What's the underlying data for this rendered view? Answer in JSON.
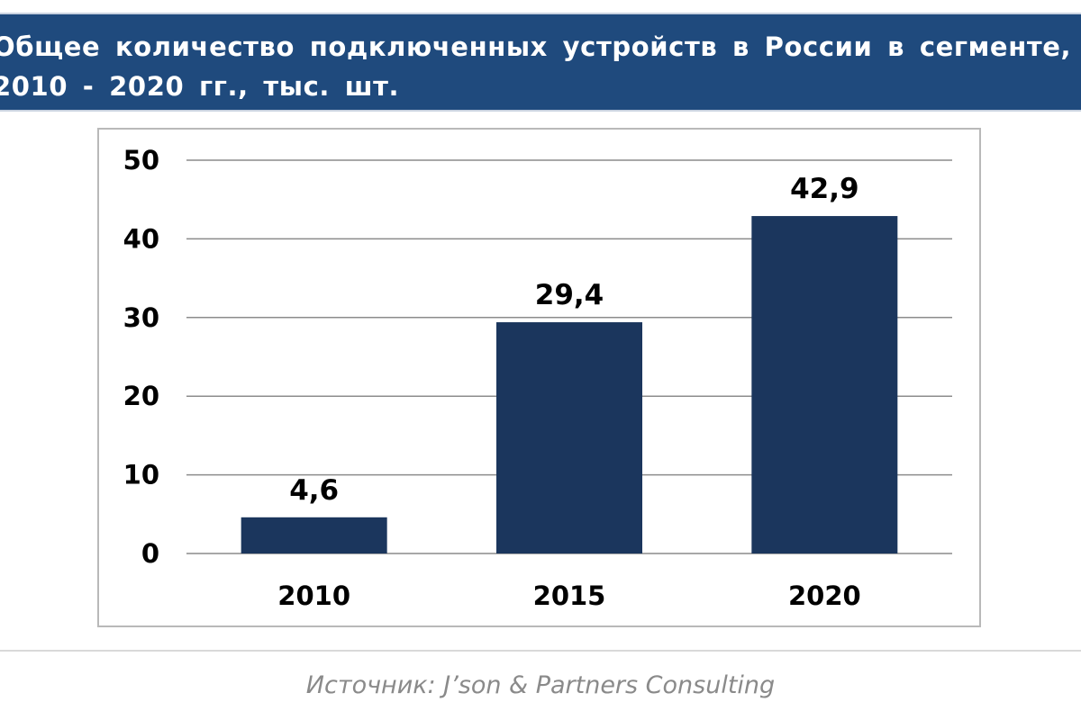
{
  "header": {
    "title": "Общее количество подключенных устройств в России в сегменте, 2010 - 2020 гг., тыс. шт."
  },
  "colors": {
    "header_bg": "#1f4a7d",
    "bar": "#1b365d",
    "grid": "#8c8c8c",
    "source_text": "#8a8a8a"
  },
  "chart_data": {
    "type": "bar",
    "title": "",
    "xlabel": "",
    "ylabel": "",
    "categories": [
      "2010",
      "2015",
      "2020"
    ],
    "values": [
      4.6,
      29.4,
      42.9
    ],
    "value_labels": [
      "4,6",
      "29,4",
      "42,9"
    ],
    "ylim": [
      0,
      50
    ],
    "yticks": [
      0,
      10,
      20,
      30,
      40,
      50
    ],
    "ytick_labels": [
      "0",
      "10",
      "20",
      "30",
      "40",
      "50"
    ],
    "grid": true,
    "legend": "none"
  },
  "footer": {
    "source": "Источник: J’son & Partners Consulting"
  }
}
